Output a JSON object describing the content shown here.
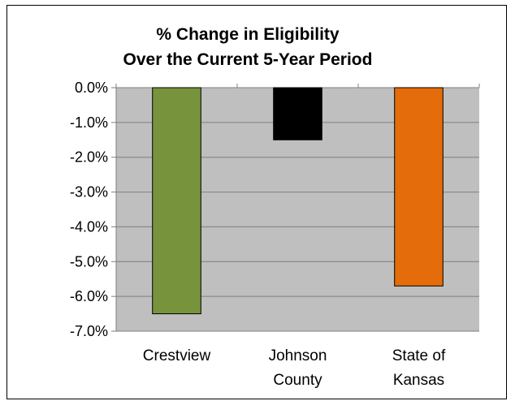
{
  "chart_data": {
    "type": "bar",
    "title": [
      "% Change in Eligibility",
      "Over the Current 5-Year Period"
    ],
    "categories": [
      [
        "Crestview"
      ],
      [
        "Johnson",
        "County"
      ],
      [
        "State of",
        "Kansas"
      ]
    ],
    "values": [
      -6.5,
      -1.5,
      -5.7
    ],
    "colors": [
      "#77933c",
      "#000000",
      "#e46c0a"
    ],
    "bar_stroke": "#000000",
    "plot_background": "#bfbfbf",
    "gridline_color": "#7f7f7f",
    "ylim": [
      -7.0,
      0.0
    ],
    "yticks": [
      0.0,
      -1.0,
      -2.0,
      -3.0,
      -4.0,
      -5.0,
      -6.0,
      -7.0
    ],
    "ytick_labels": [
      "0.0%",
      "-1.0%",
      "-2.0%",
      "-3.0%",
      "-4.0%",
      "-5.0%",
      "-6.0%",
      "-7.0%"
    ],
    "grid": true,
    "legend": "none",
    "xlabel": "",
    "ylabel": ""
  }
}
